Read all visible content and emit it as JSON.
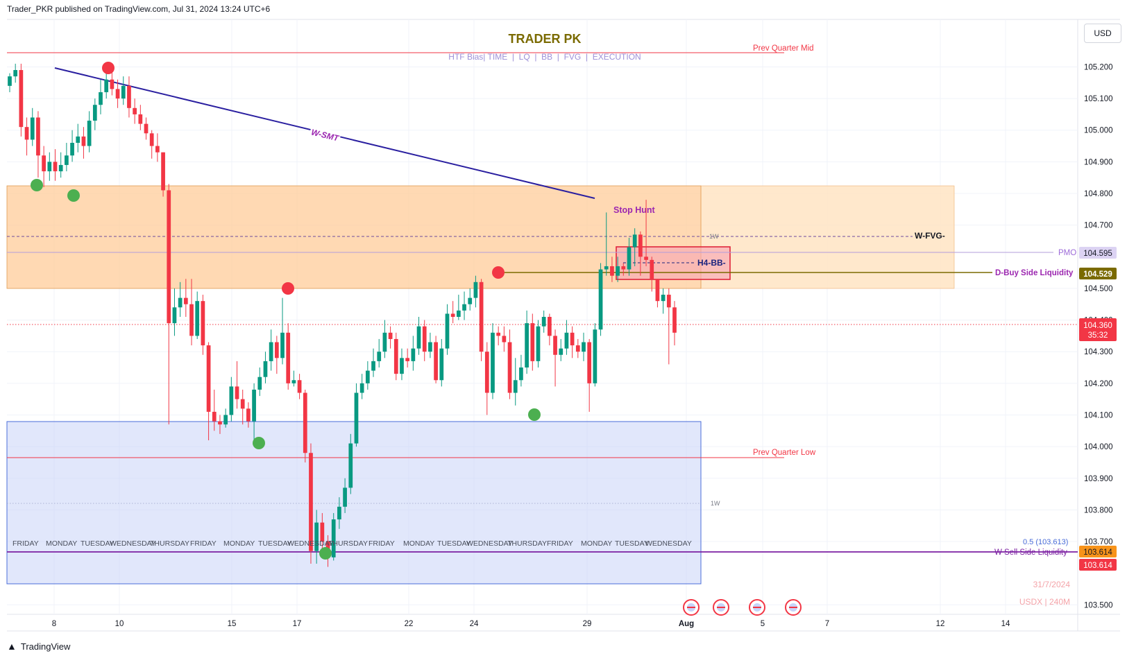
{
  "header": {
    "published": "Trader_PKR published on TradingView.com, Jul 31, 2024 13:24 UTC+6"
  },
  "currency_button": "USD",
  "footer": {
    "logo_text": "TradingView"
  },
  "colors": {
    "up": "#089981",
    "down": "#f23645",
    "fvg_box": "#ffcc99",
    "discount_box": "#c8d3f8",
    "trendline": "#2a1fa0",
    "dbsl": "#7a6a00",
    "ssl": "#7b1fa2"
  },
  "chart_data": {
    "type": "candlestick",
    "title": "TRADER PK",
    "subtitle": "HTF Bias| TIME  |  LQ  |  BB  |  FVG  |  EXECUTION",
    "symbol_label": "USDX | 240M",
    "date_label": "31/7/2024",
    "ylim": [
      103.47,
      105.35
    ],
    "y_ticks": [
      "105.200",
      "105.100",
      "105.000",
      "104.900",
      "104.800",
      "104.700",
      "104.500",
      "104.400",
      "104.300",
      "104.200",
      "104.100",
      "104.000",
      "103.900",
      "103.800",
      "103.700",
      "103.500"
    ],
    "x_ticks": [
      "8",
      "10",
      "15",
      "17",
      "22",
      "24",
      "29",
      "Aug",
      "5",
      "7",
      "12",
      "14"
    ],
    "weekday_labels": [
      "FRIDAY",
      "MONDAY",
      "TUESDAY",
      "WEDNESDAY",
      "THURSDAY",
      "FRIDAY",
      "MONDAY",
      "TUESDAY",
      "WEDNESDAY",
      "THURSDAY",
      "FRIDAY",
      "MONDAY",
      "TUESDAY",
      "WEDNESDAY",
      "THURSDAY",
      "FRIDAY",
      "MONDAY",
      "TUESDAY",
      "WEDNESDAY"
    ],
    "levels": [
      {
        "name": "Prev Quarter Mid",
        "value": 105.253,
        "color": "#f23645"
      },
      {
        "name": "Prev Quarter Low",
        "value": 103.92,
        "color": "#f23645"
      },
      {
        "name": "PMO",
        "value": 104.595,
        "badge": "104.595",
        "color": "#b39ddb"
      },
      {
        "name": "D-Buy Side Liquidity",
        "value": 104.529,
        "badge": "104.529",
        "color": "#7a6a00"
      },
      {
        "name": "W Sell Side Liquidity",
        "value": 103.614,
        "badge": "103.614",
        "color": "#7b1fa2"
      }
    ],
    "current_price": {
      "value": 104.36,
      "label": "104.360",
      "countdown": "35:32"
    },
    "fib_label": "0.5 (103.613)",
    "extra_badge": "103.614",
    "annotations": {
      "smt": "W-SMT",
      "stop_hunt": "Stop Hunt",
      "wfvg": "W-FVG-",
      "h4bb": "H4-BB-",
      "w_mark_1": "1W",
      "w_mark_2": "1W"
    },
    "zones": [
      {
        "name": "W-FVG zone",
        "from": 104.475,
        "to": 104.815
      },
      {
        "name": "Discount zone",
        "from": 103.515,
        "to": 104.04
      },
      {
        "name": "H4-BB zone",
        "from": 104.507,
        "to": 104.62
      }
    ],
    "candles": [
      [
        105.14,
        105.17,
        105.18,
        105.12
      ],
      [
        105.17,
        105.19,
        105.21,
        105.15
      ],
      [
        105.19,
        105.01,
        105.21,
        104.98
      ],
      [
        105.01,
        104.97,
        105.04,
        104.92
      ],
      [
        104.97,
        105.04,
        105.07,
        104.95
      ],
      [
        105.04,
        104.92,
        105.06,
        104.85
      ],
      [
        104.92,
        104.87,
        104.95,
        104.82
      ],
      [
        104.87,
        104.9,
        104.93,
        104.84
      ],
      [
        104.9,
        104.87,
        104.94,
        104.84
      ],
      [
        104.87,
        104.89,
        104.93,
        104.85
      ],
      [
        104.89,
        104.92,
        104.96,
        104.87
      ],
      [
        104.92,
        104.96,
        105.0,
        104.9
      ],
      [
        104.96,
        104.98,
        105.02,
        104.93
      ],
      [
        104.98,
        104.95,
        105.01,
        104.91
      ],
      [
        104.95,
        105.03,
        105.06,
        104.93
      ],
      [
        105.03,
        105.08,
        105.1,
        105.0
      ],
      [
        105.08,
        105.12,
        105.16,
        105.05
      ],
      [
        105.12,
        105.16,
        105.19,
        105.1
      ],
      [
        105.16,
        105.13,
        105.19,
        105.11
      ],
      [
        105.13,
        105.1,
        105.16,
        105.07
      ],
      [
        105.1,
        105.14,
        105.17,
        105.08
      ],
      [
        105.14,
        105.07,
        105.17,
        105.04
      ],
      [
        105.07,
        105.05,
        105.1,
        105.02
      ],
      [
        105.05,
        105.02,
        105.08,
        105.0
      ],
      [
        105.02,
        104.99,
        105.04,
        104.97
      ],
      [
        104.99,
        104.95,
        105.0,
        104.91
      ],
      [
        104.95,
        104.93,
        104.99,
        104.9
      ],
      [
        104.93,
        104.81,
        104.93,
        104.79
      ],
      [
        104.81,
        104.39,
        104.83,
        104.07
      ],
      [
        104.39,
        104.44,
        104.5,
        104.35
      ],
      [
        104.44,
        104.47,
        104.52,
        104.41
      ],
      [
        104.47,
        104.45,
        104.53,
        104.41
      ],
      [
        104.45,
        104.35,
        104.53,
        104.32
      ],
      [
        104.35,
        104.46,
        104.49,
        104.34
      ],
      [
        104.46,
        104.32,
        104.48,
        104.29
      ],
      [
        104.32,
        104.11,
        104.33,
        104.02
      ],
      [
        104.11,
        104.08,
        104.18,
        104.05
      ],
      [
        104.08,
        104.07,
        104.1,
        104.04
      ],
      [
        104.07,
        104.1,
        104.12,
        104.06
      ],
      [
        104.1,
        104.19,
        104.22,
        104.08
      ],
      [
        104.19,
        104.15,
        104.27,
        104.12
      ],
      [
        104.15,
        104.12,
        104.18,
        104.07
      ],
      [
        104.12,
        104.08,
        104.14,
        104.06
      ],
      [
        104.08,
        104.18,
        104.2,
        104.02
      ],
      [
        104.18,
        104.22,
        104.25,
        104.16
      ],
      [
        104.22,
        104.27,
        104.3,
        104.2
      ],
      [
        104.27,
        104.33,
        104.37,
        104.24
      ],
      [
        104.33,
        104.28,
        104.35,
        104.23
      ],
      [
        104.28,
        104.36,
        104.47,
        104.26
      ],
      [
        104.36,
        104.2,
        104.39,
        104.18
      ],
      [
        104.2,
        104.21,
        104.24,
        104.19
      ],
      [
        104.21,
        104.17,
        104.23,
        104.15
      ],
      [
        104.17,
        103.98,
        104.18,
        103.95
      ],
      [
        103.98,
        103.67,
        104.01,
        103.63
      ],
      [
        103.67,
        103.76,
        103.8,
        103.63
      ],
      [
        103.76,
        103.7,
        103.79,
        103.66
      ],
      [
        103.7,
        103.65,
        103.72,
        103.62
      ],
      [
        103.65,
        103.77,
        103.79,
        103.64
      ],
      [
        103.77,
        103.81,
        103.84,
        103.74
      ],
      [
        103.81,
        103.87,
        103.9,
        103.79
      ],
      [
        103.87,
        104.01,
        104.04,
        103.85
      ],
      [
        104.01,
        104.17,
        104.2,
        104.0
      ],
      [
        104.17,
        104.2,
        104.23,
        104.15
      ],
      [
        104.2,
        104.24,
        104.27,
        104.18
      ],
      [
        104.24,
        104.27,
        104.31,
        104.22
      ],
      [
        104.27,
        104.3,
        104.34,
        104.25
      ],
      [
        104.3,
        104.36,
        104.4,
        104.28
      ],
      [
        104.36,
        104.34,
        104.38,
        104.31
      ],
      [
        104.34,
        104.23,
        104.36,
        104.21
      ],
      [
        104.23,
        104.28,
        104.31,
        104.21
      ],
      [
        104.28,
        104.27,
        104.31,
        104.25
      ],
      [
        104.27,
        104.31,
        104.35,
        104.24
      ],
      [
        104.31,
        104.38,
        104.41,
        104.29
      ],
      [
        104.38,
        104.3,
        104.4,
        104.27
      ],
      [
        104.3,
        104.33,
        104.36,
        104.28
      ],
      [
        104.33,
        104.21,
        104.35,
        104.2
      ],
      [
        104.21,
        104.31,
        104.34,
        104.19
      ],
      [
        104.31,
        104.42,
        104.45,
        104.29
      ],
      [
        104.42,
        104.41,
        104.46,
        104.39
      ],
      [
        104.41,
        104.43,
        104.48,
        104.4
      ],
      [
        104.43,
        104.45,
        104.49,
        104.4
      ],
      [
        104.45,
        104.47,
        104.5,
        104.43
      ],
      [
        104.47,
        104.52,
        104.54,
        104.44
      ],
      [
        104.52,
        104.3,
        104.53,
        104.27
      ],
      [
        104.3,
        104.17,
        104.33,
        104.1
      ],
      [
        104.17,
        104.36,
        104.39,
        104.15
      ],
      [
        104.36,
        104.35,
        104.38,
        104.32
      ],
      [
        104.35,
        104.33,
        104.38,
        104.3
      ],
      [
        104.33,
        104.17,
        104.37,
        104.15
      ],
      [
        104.17,
        104.21,
        104.28,
        104.13
      ],
      [
        104.21,
        104.25,
        104.29,
        104.19
      ],
      [
        104.25,
        104.39,
        104.43,
        104.23
      ],
      [
        104.39,
        104.27,
        104.42,
        104.24
      ],
      [
        104.27,
        104.38,
        104.4,
        104.25
      ],
      [
        104.38,
        104.41,
        104.43,
        104.36
      ],
      [
        104.41,
        104.35,
        104.42,
        104.32
      ],
      [
        104.35,
        104.29,
        104.37,
        104.19
      ],
      [
        104.29,
        104.31,
        104.34,
        104.27
      ],
      [
        104.31,
        104.36,
        104.4,
        104.29
      ],
      [
        104.36,
        104.32,
        104.38,
        104.28
      ],
      [
        104.32,
        104.3,
        104.34,
        104.28
      ],
      [
        104.3,
        104.33,
        104.36,
        104.27
      ],
      [
        104.33,
        104.2,
        104.34,
        104.11
      ],
      [
        104.2,
        104.37,
        104.39,
        104.19
      ],
      [
        104.37,
        104.56,
        104.58,
        104.35
      ],
      [
        104.56,
        104.57,
        104.74,
        104.54
      ],
      [
        104.57,
        104.54,
        104.6,
        104.52
      ],
      [
        104.54,
        104.57,
        104.6,
        104.52
      ],
      [
        104.57,
        104.56,
        104.58,
        104.54
      ],
      [
        104.56,
        104.63,
        104.66,
        104.54
      ],
      [
        104.63,
        104.67,
        104.69,
        104.57
      ],
      [
        104.67,
        104.6,
        104.68,
        104.54
      ],
      [
        104.6,
        104.59,
        104.78,
        104.57
      ],
      [
        104.59,
        104.53,
        104.6,
        104.49
      ],
      [
        104.53,
        104.46,
        104.53,
        104.44
      ],
      [
        104.46,
        104.48,
        104.5,
        104.42
      ],
      [
        104.48,
        104.44,
        104.5,
        104.26
      ],
      [
        104.44,
        104.36,
        104.46,
        104.32
      ]
    ]
  }
}
